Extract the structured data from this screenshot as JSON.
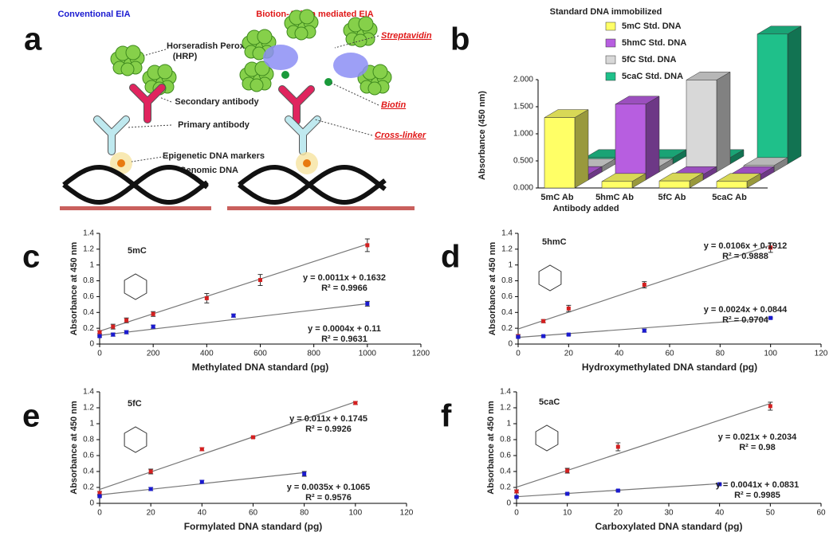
{
  "panel_a": {
    "panel_label": "a",
    "left_title": "Conventional EIA",
    "right_title": "Biotion-Avidin mediated EIA",
    "hrp": "Horseradish Peroxidase",
    "hrp_abbr": "(HRP)",
    "secondary": "Secondary antibody",
    "primary": "Primary antibody",
    "markers": "Epigenetic DNA markers",
    "genomic": "Genomic DNA",
    "streptavidin": "Streptavidin",
    "biotin": "Biotin",
    "crosslinker": "Cross-linker"
  },
  "chart_data": [
    {
      "type": "bar3d",
      "panel_label": "b",
      "title": "Standard DNA immobilized",
      "x_label": "Antibody added",
      "y_label": "Absorbance (450 nm)",
      "categories": [
        "5mC Ab",
        "5hmC Ab",
        "5fC Ab",
        "5caC Ab"
      ],
      "series": [
        {
          "name": "5mC Std. DNA",
          "color": "#ffff66",
          "values": [
            1.3,
            0.12,
            0.13,
            0.12
          ]
        },
        {
          "name": "5hmC Std. DNA",
          "color": "#b75ee0",
          "values": [
            0.1,
            1.4,
            0.1,
            0.1
          ]
        },
        {
          "name": "5fC Std. DNA",
          "color": "#d8d8d8",
          "values": [
            0.1,
            0.1,
            1.7,
            0.12
          ]
        },
        {
          "name": "5caC Std. DNA",
          "color": "#1fc08a",
          "values": [
            0.12,
            0.12,
            0.12,
            2.4
          ]
        }
      ],
      "ylim": [
        0,
        2
      ],
      "yticks": [
        {
          "value": 0,
          "label": "0.000"
        },
        {
          "value": 0.5,
          "label": "0.500"
        },
        {
          "value": 1,
          "label": "1.000"
        },
        {
          "value": 1.5,
          "label": "1.500"
        },
        {
          "value": 2,
          "label": "2.000"
        }
      ]
    },
    {
      "type": "scatter",
      "panel_label": "c",
      "compound": "5mC",
      "x_label": "Methylated DNA standard (pg)",
      "y_label": "Absorbance at 450 nm",
      "xlim": [
        0,
        1200
      ],
      "xticks": [
        0,
        200,
        400,
        600,
        800,
        1000,
        1200
      ],
      "ylim": [
        0,
        1.4
      ],
      "yticks": [
        0,
        0.2,
        0.4,
        0.6,
        0.8,
        1,
        1.2,
        1.4
      ],
      "series": [
        {
          "color": "#d42020",
          "x": [
            0,
            50,
            100,
            200,
            400,
            600,
            1000
          ],
          "values": [
            0.15,
            0.22,
            0.3,
            0.38,
            0.58,
            0.81,
            1.25
          ],
          "errors": [
            0.02,
            0.03,
            0.03,
            0.03,
            0.06,
            0.07,
            0.08
          ],
          "fit": {
            "slope": 0.0011,
            "intercept": 0.1632,
            "label": "y = 0.0011x + 0.1632",
            "r2_label": "R² = 0.9966"
          }
        },
        {
          "color": "#1a1ad0",
          "x": [
            0,
            50,
            100,
            200,
            500,
            1000
          ],
          "values": [
            0.1,
            0.12,
            0.15,
            0.22,
            0.36,
            0.51
          ],
          "errors": [
            0.01,
            0.02,
            0.02,
            0.02,
            0.02,
            0.03
          ],
          "fit": {
            "slope": 0.0004,
            "intercept": 0.11,
            "label": "y = 0.0004x + 0.11",
            "r2_label": "R² = 0.9631"
          }
        }
      ]
    },
    {
      "type": "scatter",
      "panel_label": "d",
      "compound": "5hmC",
      "x_label": "Hydroxymethylated DNA standard (pg)",
      "y_label": "Absorbance at 450 nm",
      "xlim": [
        0,
        120
      ],
      "xticks": [
        0,
        20,
        40,
        60,
        80,
        100,
        120
      ],
      "ylim": [
        0,
        1.4
      ],
      "yticks": [
        0,
        0.2,
        0.4,
        0.6,
        0.8,
        1,
        1.2,
        1.4
      ],
      "series": [
        {
          "color": "#d42020",
          "x": [
            0,
            10,
            20,
            50,
            100
          ],
          "values": [
            0.1,
            0.29,
            0.45,
            0.75,
            1.22
          ],
          "errors": [
            0.02,
            0.02,
            0.04,
            0.04,
            0.06
          ],
          "fit": {
            "slope": 0.0106,
            "intercept": 0.1912,
            "label": "y = 0.0106x + 0.1912",
            "r2_label": "R² = 0.9888"
          }
        },
        {
          "color": "#1a1ad0",
          "x": [
            0,
            10,
            20,
            50,
            100
          ],
          "values": [
            0.09,
            0.1,
            0.12,
            0.17,
            0.33
          ],
          "errors": [
            0.01,
            0.01,
            0.01,
            0.02,
            0.01
          ],
          "fit": {
            "slope": 0.0024,
            "intercept": 0.0844,
            "label": "y = 0.0024x + 0.0844",
            "r2_label": "R² = 0.9704"
          }
        }
      ]
    },
    {
      "type": "scatter",
      "panel_label": "e",
      "compound": "5fC",
      "x_label": "Formylated DNA standard (pg)",
      "y_label": "Absorbance at 450 nm",
      "xlim": [
        0,
        120
      ],
      "xticks": [
        0,
        20,
        40,
        60,
        80,
        100,
        120
      ],
      "ylim": [
        0,
        1.4
      ],
      "yticks": [
        0,
        0.2,
        0.4,
        0.6,
        0.8,
        1,
        1.2,
        1.4
      ],
      "series": [
        {
          "color": "#d42020",
          "x": [
            0,
            20,
            40,
            60,
            100
          ],
          "values": [
            0.13,
            0.4,
            0.68,
            0.83,
            1.26
          ],
          "errors": [
            0.02,
            0.03,
            0.02,
            0.01,
            0.02
          ],
          "fit": {
            "slope": 0.011,
            "intercept": 0.1745,
            "label": "y = 0.011x + 0.1745",
            "r2_label": "R² = 0.9926"
          }
        },
        {
          "color": "#1a1ad0",
          "x": [
            0,
            20,
            40,
            80
          ],
          "values": [
            0.09,
            0.18,
            0.27,
            0.37
          ],
          "errors": [
            0.01,
            0.02,
            0.02,
            0.03
          ],
          "fit": {
            "slope": 0.0035,
            "intercept": 0.1065,
            "label": "y = 0.0035x + 0.1065",
            "r2_label": "R² = 0.9576"
          }
        }
      ]
    },
    {
      "type": "scatter",
      "panel_label": "f",
      "compound": "5caC",
      "x_label": "Carboxylated DNA standard (pg)",
      "y_label": "Absorbance at 450 nm",
      "xlim": [
        0,
        60
      ],
      "xticks": [
        0,
        10,
        20,
        30,
        40,
        50,
        60
      ],
      "ylim": [
        0,
        1.4
      ],
      "yticks": [
        0,
        0.2,
        0.4,
        0.6,
        0.8,
        1,
        1.2,
        1.4
      ],
      "series": [
        {
          "color": "#d42020",
          "x": [
            0,
            10,
            20,
            50
          ],
          "values": [
            0.15,
            0.41,
            0.71,
            1.22
          ],
          "errors": [
            0.02,
            0.03,
            0.05,
            0.05
          ],
          "fit": {
            "slope": 0.021,
            "intercept": 0.2034,
            "label": "y = 0.021x + 0.2034",
            "r2_label": "R² = 0.98"
          }
        },
        {
          "color": "#1a1ad0",
          "x": [
            0,
            10,
            20,
            40
          ],
          "values": [
            0.08,
            0.12,
            0.16,
            0.24
          ],
          "errors": [
            0.01,
            0.01,
            0.01,
            0.01
          ],
          "fit": {
            "slope": 0.0041,
            "intercept": 0.0831,
            "label": "y = 0.0041x + 0.0831",
            "r2_label": "R² = 0.9985"
          }
        }
      ]
    }
  ]
}
